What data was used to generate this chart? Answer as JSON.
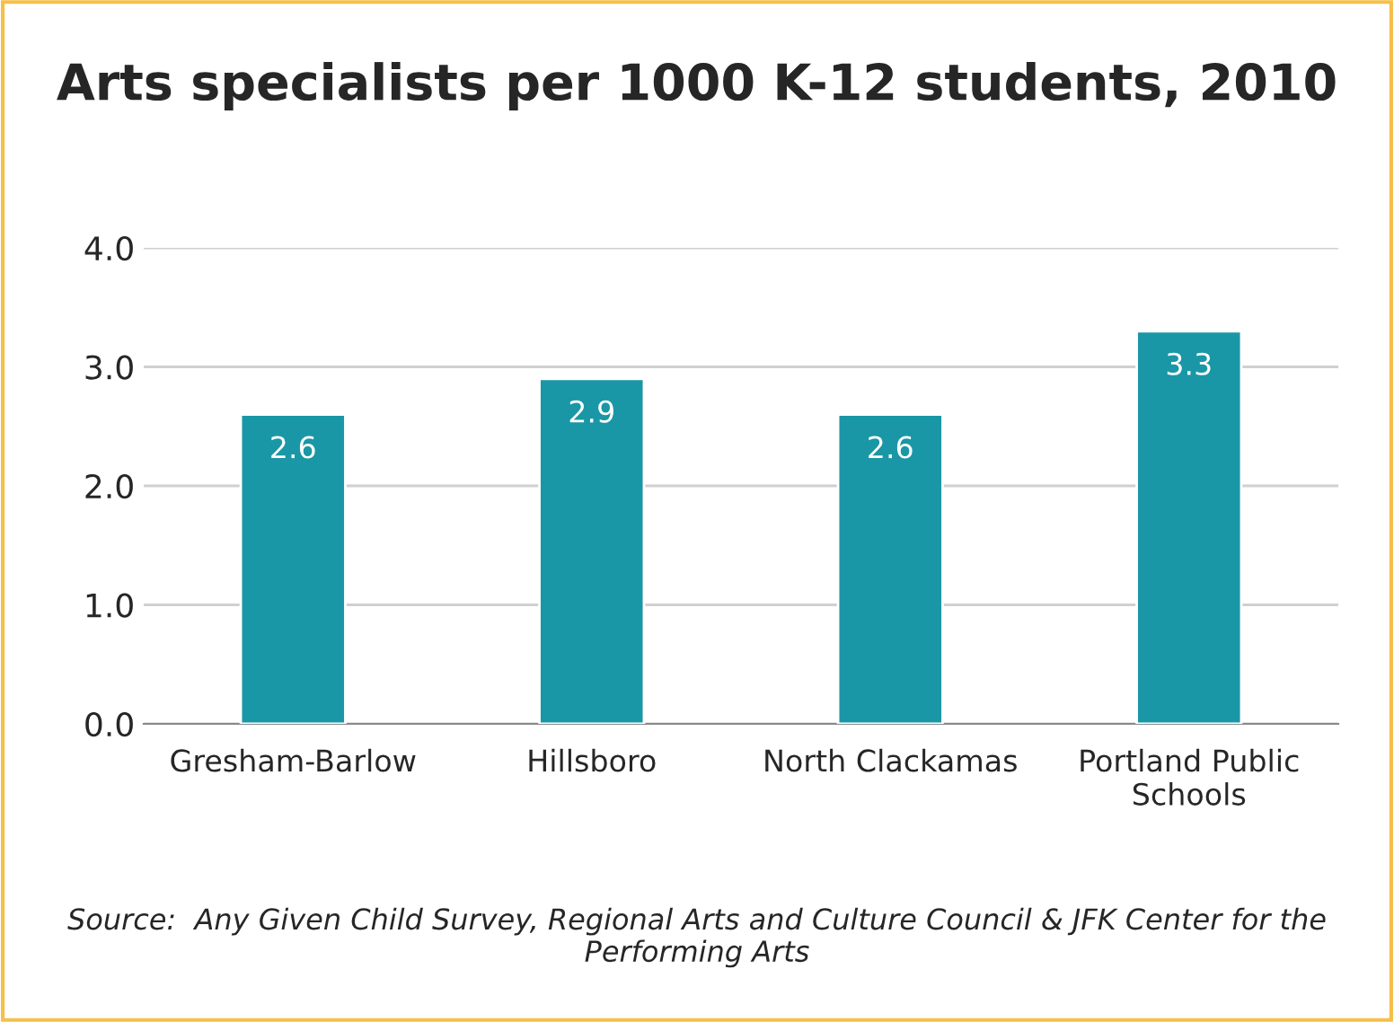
{
  "chart_data": {
    "type": "bar",
    "title": "Arts specialists per 1000 K-12 students, 2010",
    "categories": [
      "Gresham-Barlow",
      "Hillsboro",
      "North Clackamas",
      "Portland Public\nSchools"
    ],
    "values": [
      2.6,
      2.9,
      2.6,
      3.3
    ],
    "color": "#1a97a6",
    "ylim": [
      0,
      4
    ],
    "yticks": [
      {
        "value": 0,
        "label": "0.0"
      },
      {
        "value": 1,
        "label": "1.0"
      },
      {
        "value": 2,
        "label": "2.0"
      },
      {
        "value": 3,
        "label": "3.0"
      },
      {
        "value": 4,
        "label": "4.0"
      }
    ],
    "grid": "y",
    "data_labels": true,
    "annotations": [
      "Source:  Any Given Child Survey, Regional Arts and Culture Council & JFK Center for the Performing Arts"
    ]
  }
}
